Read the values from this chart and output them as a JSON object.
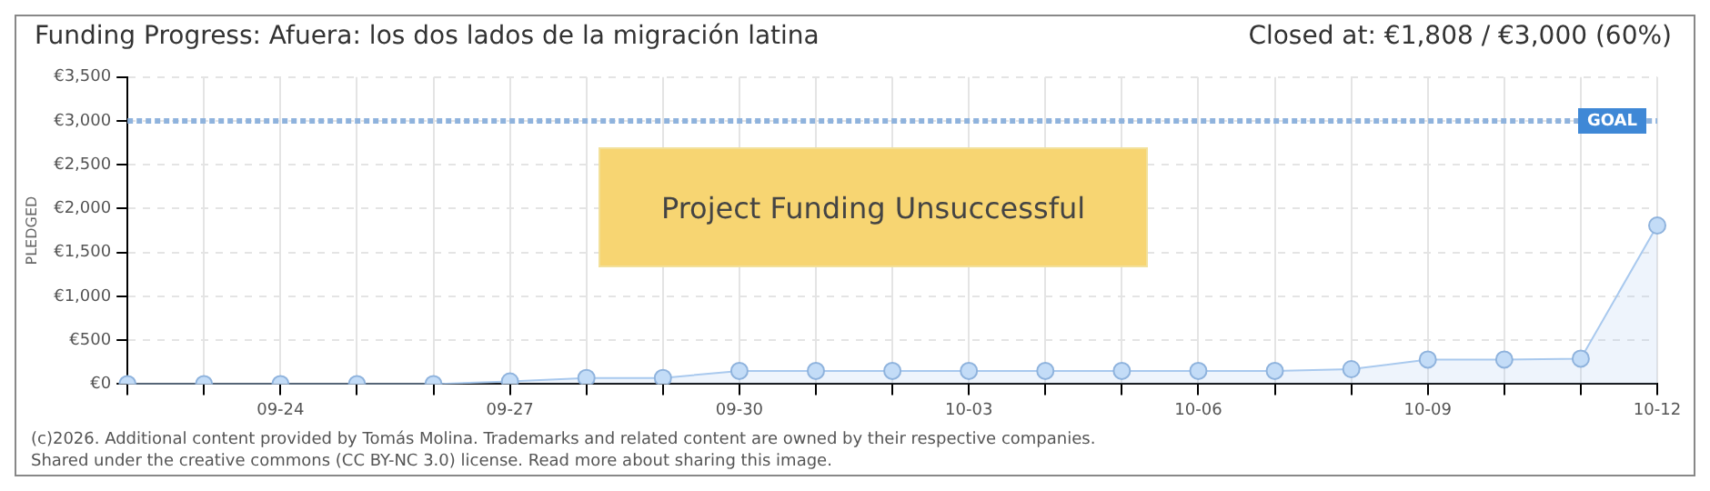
{
  "chart_data": {
    "type": "area",
    "title": "Funding Progress: Afuera: los dos lados de la migración latina",
    "subtitle": "Closed at:  €1,808 / €3,000 (60%)",
    "ylabel": "PLEDGED",
    "categories": [
      null,
      null,
      "09-24",
      null,
      null,
      "09-27",
      null,
      null,
      "09-30",
      null,
      null,
      "10-03",
      null,
      null,
      "10-06",
      null,
      null,
      "10-09",
      null,
      null,
      "10-12"
    ],
    "series": [
      {
        "color": "#a9c9ee",
        "values": [
          0,
          0,
          0,
          0,
          0,
          30,
          70,
          70,
          150,
          150,
          150,
          150,
          150,
          150,
          150,
          150,
          170,
          280,
          280,
          290,
          1808
        ]
      }
    ],
    "ylim": [
      0,
      3500
    ],
    "yticks": [
      {
        "value": 0,
        "label": "€0"
      },
      {
        "value": 500,
        "label": "€500"
      },
      {
        "value": 1000,
        "label": "€1,000"
      },
      {
        "value": 1500,
        "label": "€1,500"
      },
      {
        "value": 2000,
        "label": "€2,000"
      },
      {
        "value": 2500,
        "label": "€2,500"
      },
      {
        "value": 3000,
        "label": "€3,000"
      },
      {
        "value": 3500,
        "label": "€3,500"
      }
    ],
    "ref_lines": [
      {
        "axis": "y",
        "value": 3000,
        "label": "GOAL",
        "color": "#8fb3dd",
        "line_style": "dotted"
      }
    ],
    "grid": true,
    "legend": false,
    "marker": "circle",
    "annotations": [
      "Project Funding Unsuccessful",
      "(c)2026. Additional content provided by Tomás Molina. Trademarks and related content are owned by their respective companies.",
      "Shared under the creative commons (CC BY-NC 3.0) license. Read more about sharing this image."
    ]
  }
}
